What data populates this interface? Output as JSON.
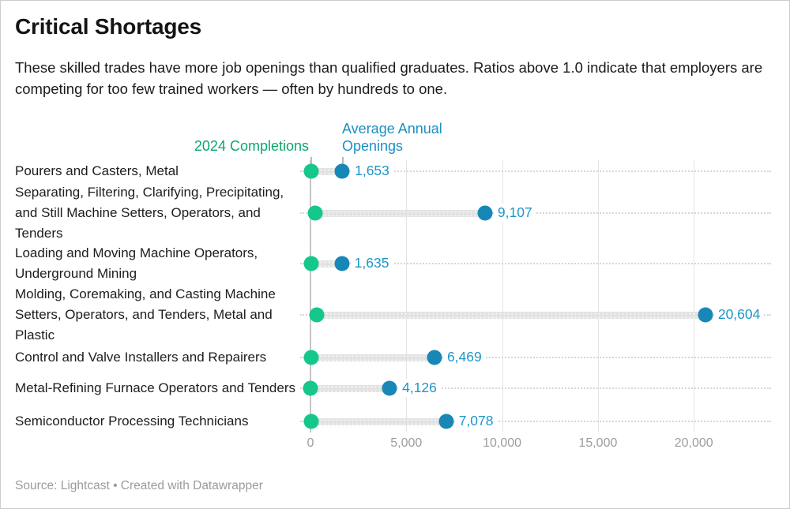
{
  "header": {
    "title": "Critical Shortages",
    "subtitle": "These skilled trades have more job openings than qualified graduates. Ratios above 1.0 indicate that employers are competing for too few trained workers — often by hundreds to one."
  },
  "legend": {
    "completions_label": "2024 Completions",
    "openings_label": "Average Annual Openings"
  },
  "chart_data": {
    "type": "dumbbell",
    "title": "Critical Shortages",
    "categories": [
      "Pourers and Casters, Metal",
      "Separating, Filtering, Clarifying, Precipitating, and Still Machine Setters, Operators, and Tenders",
      "Loading and Moving Machine Operators, Underground Mining",
      "Molding, Coremaking, and Casting Machine Setters, Operators, and Tenders, Metal and Plastic",
      "Control and Valve Installers and Repairers",
      "Metal-Refining Furnace Operators and Tenders",
      "Semiconductor Processing Technicians"
    ],
    "series": [
      {
        "name": "2024 Completions",
        "values": [
          60,
          230,
          25,
          340,
          60,
          15,
          30
        ],
        "values_estimated_from_pixels": true
      },
      {
        "name": "Average Annual Openings",
        "values": [
          1653,
          9107,
          1635,
          20604,
          6469,
          4126,
          7078
        ],
        "value_labels": [
          "1,653",
          "9,107",
          "1,635",
          "20,604",
          "6,469",
          "4,126",
          "7,078"
        ]
      }
    ],
    "x_axis": {
      "ticks": [
        0,
        5000,
        10000,
        15000,
        20000
      ],
      "tick_labels": [
        "0",
        "5,000",
        "10,000",
        "15,000",
        "20,000"
      ],
      "range": [
        0,
        24200
      ],
      "grid": true
    },
    "legend_position": "top"
  },
  "colors": {
    "completions_green": "#15C78A",
    "openings_blue": "#1787B8",
    "value_text_blue": "#1D96C8",
    "legend_green_text": "#0BA76C",
    "legend_blue_text": "#1B90C3"
  },
  "footer": {
    "source": "Source: Lightcast • Created with Datawrapper"
  }
}
